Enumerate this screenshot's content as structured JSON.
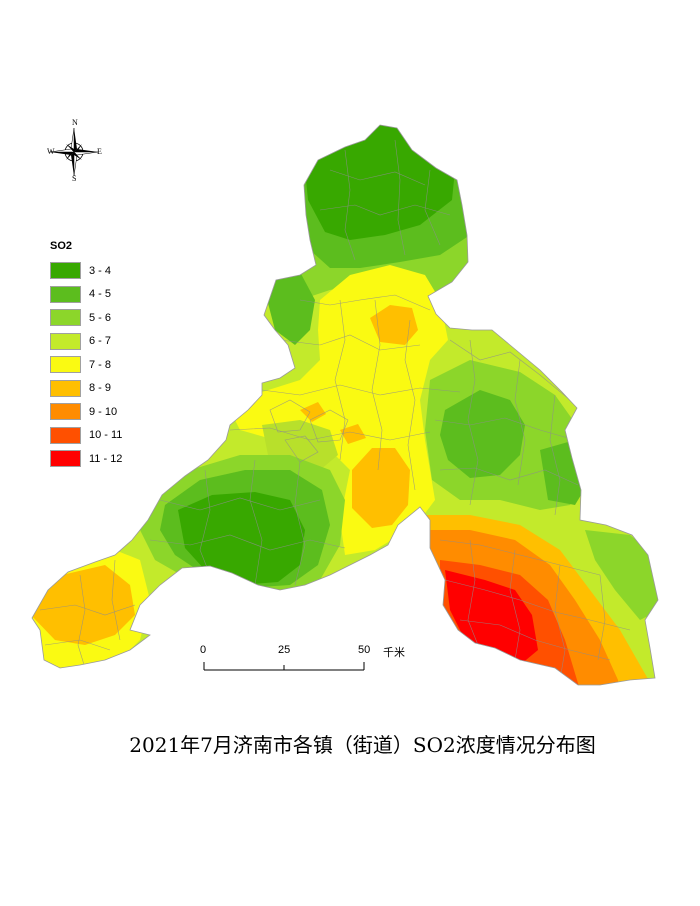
{
  "title": "2021年7月济南市各镇（街道）SO2浓度情况分布图",
  "compass": {
    "icon": "north-arrow-compass-rose",
    "n": "N",
    "s": "S",
    "e": "E",
    "w": "W"
  },
  "legend": {
    "title": "SO2",
    "items": [
      {
        "label": "3 - 4",
        "color": "#38a800"
      },
      {
        "label": "4 - 5",
        "color": "#5cbd1e"
      },
      {
        "label": "5 - 6",
        "color": "#8cd62a"
      },
      {
        "label": "6 - 7",
        "color": "#c3ea2b"
      },
      {
        "label": "7 - 8",
        "color": "#fafa12"
      },
      {
        "label": "8 - 9",
        "color": "#ffbf00"
      },
      {
        "label": "9 - 10",
        "color": "#ff8c00"
      },
      {
        "label": "10 - 11",
        "color": "#ff5000"
      },
      {
        "label": "11 - 12",
        "color": "#ff0000"
      }
    ]
  },
  "scale": {
    "ticks": [
      "0",
      "25",
      "50"
    ],
    "unit": "千米"
  }
}
